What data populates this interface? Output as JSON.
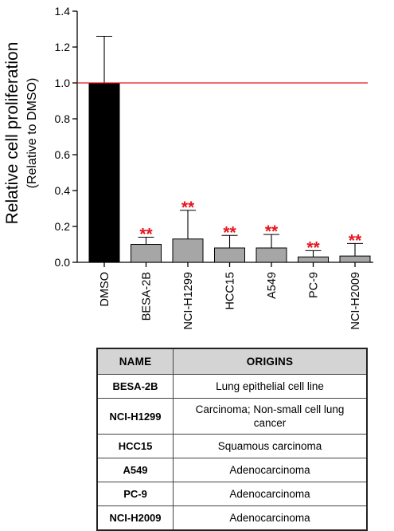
{
  "chart_data": {
    "type": "bar",
    "ylabel": "Relative cell proliferation",
    "ylabel_sub": "(Relative to DMSO)",
    "xlabel": "",
    "title": "",
    "ylim": [
      0,
      1.4
    ],
    "yticks": [
      0.0,
      0.2,
      0.4,
      0.6,
      0.8,
      1.0,
      1.2,
      1.4
    ],
    "ytick_labels": [
      "0.0",
      "0.2",
      "0.4",
      "0.6",
      "0.8",
      "1.0",
      "1.2",
      "1.4"
    ],
    "reference_line": 1.0,
    "categories": [
      "DMSO",
      "BESA-2B",
      "NCI-H1299",
      "HCC15",
      "A549",
      "PC-9",
      "NCI-H2009"
    ],
    "values": [
      1.0,
      0.1,
      0.13,
      0.08,
      0.08,
      0.03,
      0.035
    ],
    "error_upper": [
      1.26,
      0.14,
      0.29,
      0.15,
      0.155,
      0.065,
      0.105
    ],
    "significance": [
      "",
      "**",
      "**",
      "**",
      "**",
      "**",
      "**"
    ],
    "bar_colors": [
      "#000000",
      "#a6a6a6",
      "#a6a6a6",
      "#a6a6a6",
      "#a6a6a6",
      "#a6a6a6",
      "#a6a6a6"
    ],
    "reference_color": "#e8141e",
    "significance_color": "#e8141e",
    "grid": false
  },
  "table": {
    "headers": {
      "name": "NAME",
      "origins": "ORIGINS"
    },
    "rows": [
      {
        "name": "BESA-2B",
        "origin": "Lung epithelial cell line"
      },
      {
        "name": "NCI-H1299",
        "origin": "Carcinoma; Non-small cell lung cancer"
      },
      {
        "name": "HCC15",
        "origin": "Squamous carcinoma"
      },
      {
        "name": "A549",
        "origin": "Adenocarcinoma"
      },
      {
        "name": "PC-9",
        "origin": "Adenocarcinoma"
      },
      {
        "name": "NCI-H2009",
        "origin": "Adenocarcinoma"
      }
    ]
  }
}
